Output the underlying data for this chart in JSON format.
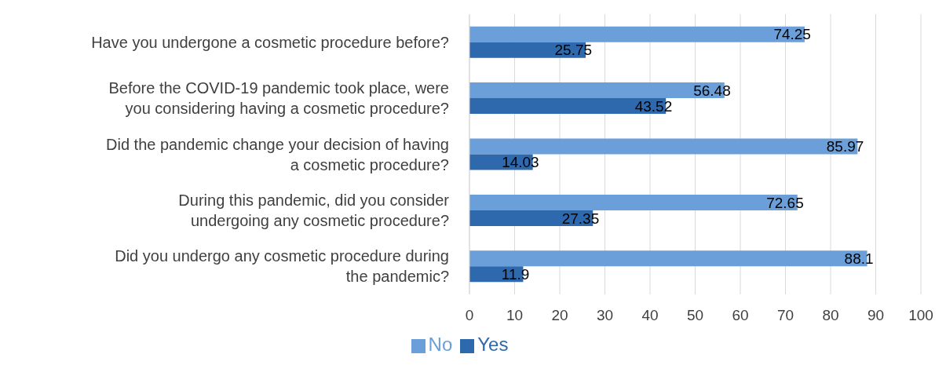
{
  "chart_data": {
    "type": "bar",
    "orientation": "horizontal",
    "categories": [
      "Have you undergone a cosmetic procedure before?",
      "Before the COVID-19 pandemic took place, were you considering having a cosmetic procedure?",
      "Did the pandemic change your decision of having a cosmetic procedure?",
      "During this pandemic, did you consider undergoing any cosmetic procedure?",
      "Did you undergo any cosmetic procedure during the pandemic?"
    ],
    "series": [
      {
        "name": "No",
        "color": "#6a9fd9",
        "values": [
          74.25,
          56.48,
          85.97,
          72.65,
          88.1
        ]
      },
      {
        "name": "Yes",
        "color": "#2e69ad",
        "values": [
          25.75,
          43.52,
          14.03,
          27.35,
          11.9
        ]
      }
    ],
    "xlim": [
      0,
      100
    ],
    "xticks": [
      0,
      10,
      20,
      30,
      40,
      50,
      60,
      70,
      80,
      90,
      100
    ],
    "grid": "x",
    "legend": "bottom",
    "data_labels": true
  }
}
